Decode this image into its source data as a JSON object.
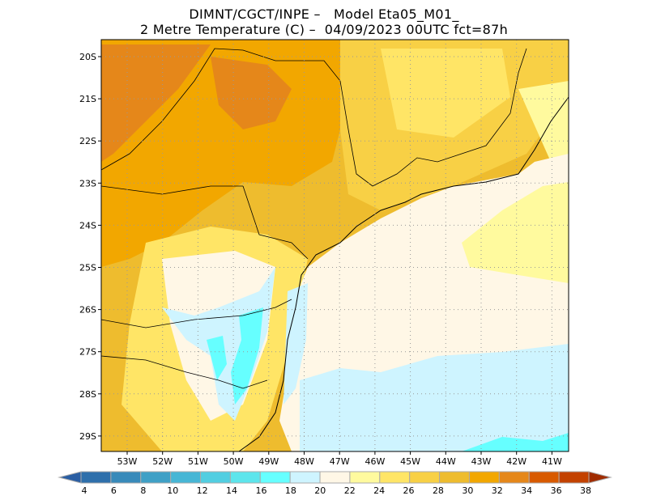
{
  "header": {
    "line1": "DIMNT/CGCT/INPE –   Model Eta05_M01_",
    "line2": "2 Metre Temperature (C) –  04/09/2023 00UTC fct=87h"
  },
  "map": {
    "lat_labels": [
      "20S",
      "21S",
      "22S",
      "23S",
      "24S",
      "25S",
      "26S",
      "27S",
      "28S",
      "29S"
    ],
    "lon_labels": [
      "53W",
      "52W",
      "51W",
      "50W",
      "49W",
      "48W",
      "47W",
      "46W",
      "45W",
      "44W",
      "43W",
      "42W",
      "41W"
    ]
  },
  "colorbar": {
    "labels": [
      "4",
      "6",
      "8",
      "10",
      "12",
      "14",
      "16",
      "18",
      "20",
      "22",
      "24",
      "26",
      "28",
      "30",
      "32",
      "34",
      "36",
      "38"
    ],
    "under_color": "#2a5ea3",
    "over_color": "#a02c00",
    "colors": [
      "#2e6fab",
      "#388aba",
      "#3fa0c6",
      "#47b6d5",
      "#52cee1",
      "#5de5ec",
      "#66ffff",
      "#cef4ff",
      "#fff7e6",
      "#fffa9e",
      "#ffe566",
      "#f8d045",
      "#eebc2e",
      "#f2a700",
      "#e5871a",
      "#d85a00",
      "#c34200"
    ]
  }
}
